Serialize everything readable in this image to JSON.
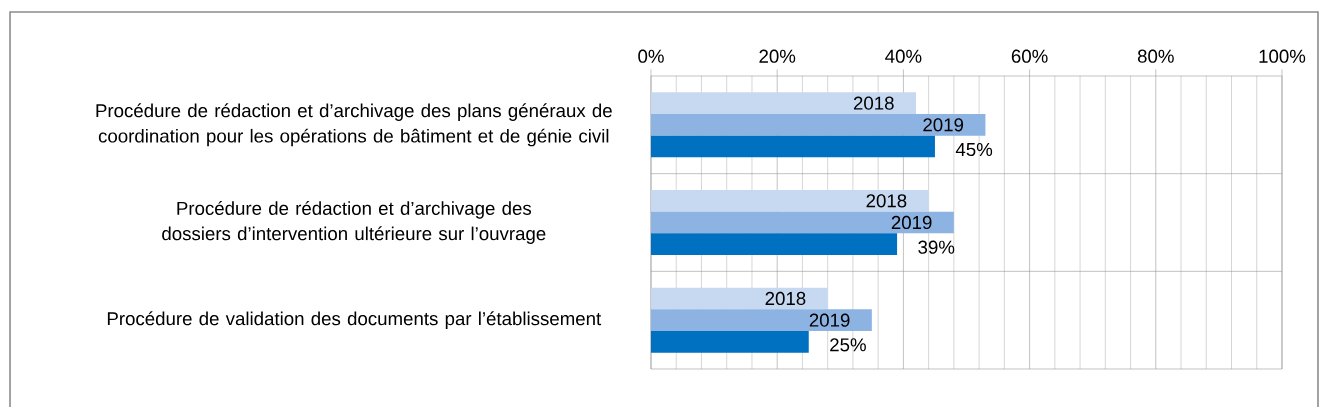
{
  "chart_data": {
    "type": "bar",
    "orientation": "horizontal",
    "categories": [
      "Procédure de rédaction et d’archivage des plans généraux de coordination pour les opérations de bâtiment et de génie civil",
      "Procédure de rédaction et d’archivage des dossiers d’intervention ultérieure sur l’ouvrage",
      "Procédure de validation des documents par l’établissement"
    ],
    "series": [
      {
        "name": "2018",
        "color": "#c6d9f1",
        "values": [
          42,
          44,
          28
        ]
      },
      {
        "name": "2019",
        "color": "#8db3e2",
        "values": [
          53,
          48,
          35
        ]
      },
      {
        "color": "#0070c0",
        "values": [
          45,
          39,
          25
        ],
        "value_labels": [
          "45%",
          "39%",
          "25%"
        ]
      }
    ],
    "xlim": [
      0,
      100
    ],
    "xticks": [
      {
        "value": 0,
        "label": "0%"
      },
      {
        "value": 20,
        "label": "20%"
      },
      {
        "value": 40,
        "label": "40%"
      },
      {
        "value": 60,
        "label": "60%"
      },
      {
        "value": 80,
        "label": "80%"
      },
      {
        "value": 100,
        "label": "100%"
      }
    ],
    "grid": true
  }
}
